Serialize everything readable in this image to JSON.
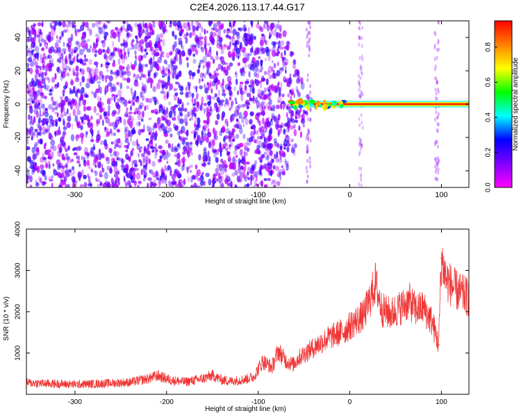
{
  "title": "C2E4.2026.113.17.44.G17",
  "chart_data": [
    {
      "type": "heatmap",
      "xlabel": "Height of straight line (km)",
      "ylabel": "Frequency (Hz)",
      "xlim": [
        -353,
        130
      ],
      "ylim": [
        -50,
        50
      ],
      "x_ticks": [
        -300,
        -200,
        -100,
        0,
        100
      ],
      "y_ticks": [
        -40,
        -20,
        0,
        20,
        40
      ],
      "colorbar": {
        "label": "Normalized spectral amplitude",
        "range": [
          0.0,
          0.95
        ],
        "ticks": [
          0.0,
          0.2,
          0.4,
          0.6,
          0.8
        ],
        "colormap": [
          "#ff00ff",
          "#8000ff",
          "#0000ff",
          "#00ffff",
          "#00ff00",
          "#ffff00",
          "#ff8000",
          "#ff0000"
        ]
      },
      "features": [
        {
          "name": "diffuse scatter",
          "x_range": [
            -353,
            -40
          ],
          "y_range": [
            -50,
            50
          ],
          "amplitude": [
            0.05,
            0.25
          ]
        },
        {
          "name": "direct signal line",
          "x_range": [
            -65,
            130
          ],
          "y": 0,
          "amplitude": [
            0.5,
            0.95
          ]
        }
      ]
    },
    {
      "type": "line",
      "xlabel": "Height of straight line (km)",
      "ylabel": "SNR (10 * v/v)",
      "xlim": [
        -353,
        130
      ],
      "ylim": [
        0,
        4000
      ],
      "x_ticks": [
        -300,
        -200,
        -100,
        0,
        100
      ],
      "y_ticks": [
        1000,
        2000,
        3000,
        4000
      ],
      "color": "#f03535",
      "series": [
        {
          "x": [
            -353,
            -330,
            -300,
            -270,
            -240,
            -220,
            -210,
            -195,
            -180,
            -160,
            -150,
            -140,
            -130,
            -115,
            -105,
            -95,
            -85,
            -78,
            -70,
            -62,
            -55,
            -45,
            -35,
            -25,
            -15,
            -5,
            5,
            15,
            22,
            28,
            35,
            45,
            55,
            65,
            72,
            80,
            90,
            97,
            100,
            105,
            112,
            120,
            130
          ],
          "y": [
            280,
            260,
            240,
            260,
            290,
            380,
            450,
            340,
            300,
            380,
            460,
            350,
            320,
            360,
            420,
            800,
            650,
            1050,
            820,
            720,
            900,
            1050,
            1200,
            1350,
            1450,
            1550,
            1750,
            1900,
            2300,
            2700,
            2050,
            1950,
            2100,
            2250,
            2050,
            2100,
            1750,
            1200,
            3300,
            2800,
            2600,
            2450,
            2350
          ]
        }
      ]
    }
  ]
}
